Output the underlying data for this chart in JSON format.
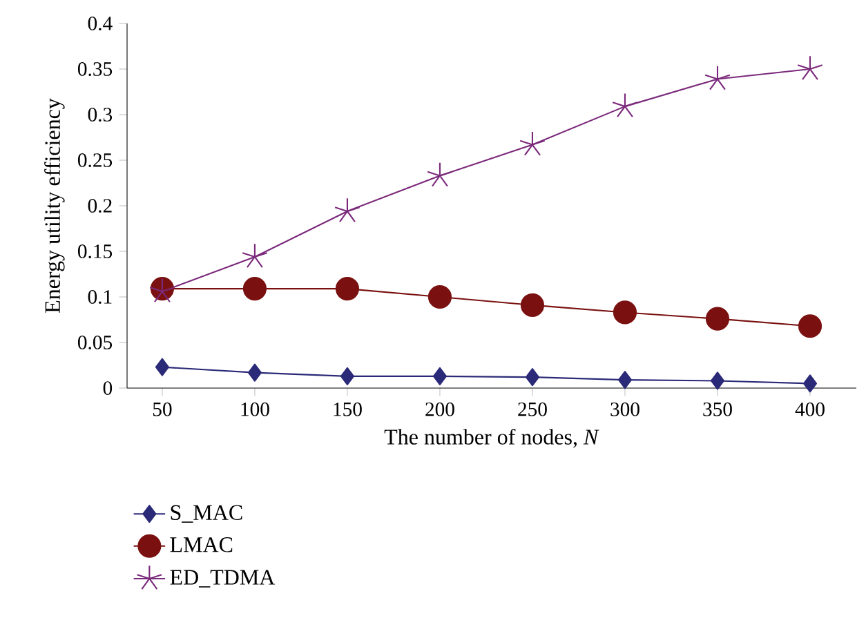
{
  "chart_data": {
    "type": "line",
    "xlabel": "The number of nodes, *N*",
    "ylabel": "Energy utility efficiency",
    "categories": [
      "50",
      "100",
      "150",
      "200",
      "250",
      "300",
      "350",
      "400"
    ],
    "ylim": [
      0,
      0.4
    ],
    "yticks": [
      0,
      0.05,
      0.1,
      0.15,
      0.2,
      0.25,
      0.3,
      0.35,
      0.4
    ],
    "legend": "bottom left",
    "grid": false,
    "line_style": "solid",
    "series": [
      {
        "name": "S_MAC",
        "color": "#2b2a78",
        "marker": "diamond",
        "values": [
          0.023,
          0.017,
          0.013,
          0.013,
          0.012,
          0.009,
          0.008,
          0.005
        ]
      },
      {
        "name": "LMAC",
        "color": "#7a1010",
        "marker": "circle",
        "values": [
          0.109,
          0.109,
          0.109,
          0.1,
          0.091,
          0.083,
          0.076,
          0.068
        ]
      },
      {
        "name": "ED_TDMA",
        "color": "#7b2a7b",
        "marker": "cross",
        "values": [
          0.106,
          0.144,
          0.194,
          0.233,
          0.267,
          0.309,
          0.339,
          0.35
        ]
      }
    ]
  }
}
